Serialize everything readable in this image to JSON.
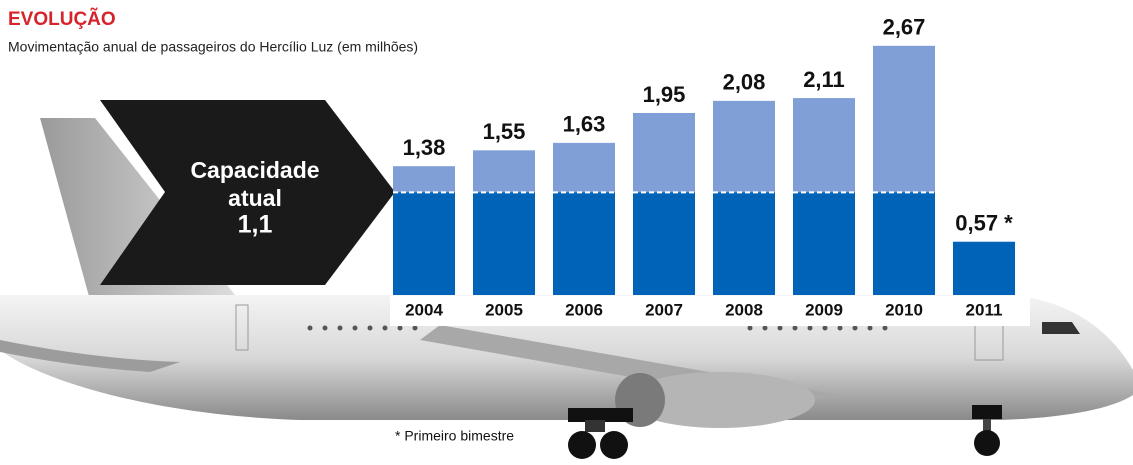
{
  "chart_data": {
    "type": "bar",
    "title": "EVOLUÇÃO",
    "subtitle": "Movimentação anual de passageiros do Hercílio Luz (em milhões)",
    "categories": [
      "2004",
      "2005",
      "2006",
      "2007",
      "2008",
      "2009",
      "2010",
      "2011"
    ],
    "values": [
      1.38,
      1.55,
      1.63,
      1.95,
      2.08,
      2.11,
      2.67,
      0.57
    ],
    "value_labels": [
      "1,38",
      "1,55",
      "1,63",
      "1,95",
      "2,08",
      "2,11",
      "2,67",
      "0,57 *"
    ],
    "color": "#7f9fd6",
    "capacity": {
      "label": "Capacidade atual",
      "value": 1.1,
      "value_label": "1,1",
      "color": "#0063b8"
    },
    "ylim": [
      0,
      2.7
    ],
    "footnote": "* Primeiro bimestre"
  }
}
